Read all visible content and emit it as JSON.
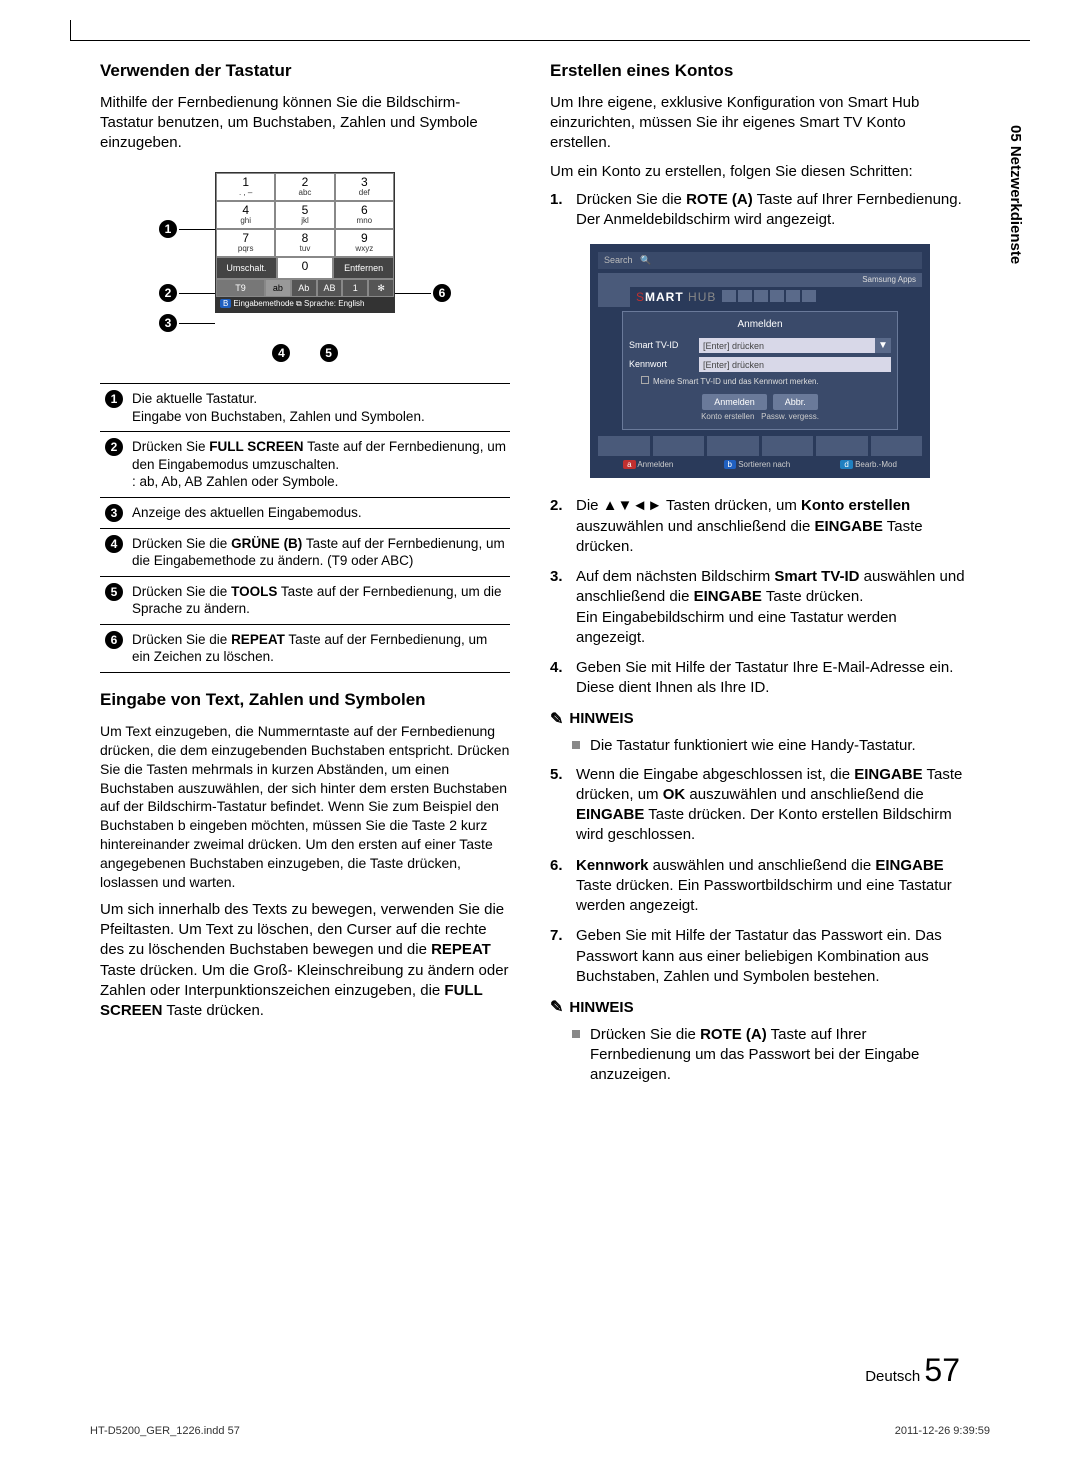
{
  "side_tab": "05  Netzwerkdienste",
  "left": {
    "h1": "Verwenden der Tastatur",
    "p1": "Mithilfe der Fernbedienung können Sie die Bildschirm-Tastatur benutzen, um Buchstaben, Zahlen und Symbole einzugeben.",
    "keyboard": {
      "rows": [
        [
          {
            "n": "1",
            "s": ". , –"
          },
          {
            "n": "2",
            "s": "abc"
          },
          {
            "n": "3",
            "s": "def"
          }
        ],
        [
          {
            "n": "4",
            "s": "ghi"
          },
          {
            "n": "5",
            "s": "jkl"
          },
          {
            "n": "6",
            "s": "mno"
          }
        ],
        [
          {
            "n": "7",
            "s": "pqrs"
          },
          {
            "n": "8",
            "s": "tuv"
          },
          {
            "n": "9",
            "s": "wxyz"
          }
        ]
      ],
      "bottom_left": "Umschalt.",
      "bottom_mid": "0",
      "bottom_right": "Entfernen",
      "mode_left": "T9",
      "modes": [
        "ab",
        "Ab",
        "AB",
        "1",
        "✻"
      ],
      "footer_badge": "B",
      "footer": "Eingabemethode ⧉ Sprache: English"
    },
    "legend": [
      {
        "n": "1",
        "t": "Die aktuelle Tastatur.\nEingabe von Buchstaben, Zahlen und Symbolen."
      },
      {
        "n": "2",
        "t": "Drücken Sie FULL SCREEN Taste auf der Fernbedienung, um den Eingabemodus umzuschalten.\n: ab, Ab, AB Zahlen oder Symbole."
      },
      {
        "n": "3",
        "t": "Anzeige des aktuellen Eingabemodus."
      },
      {
        "n": "4",
        "t": "Drücken Sie die GRÜNE (B) Taste auf der Fernbedienung, um die Eingabemethode zu ändern. (T9 oder ABC)"
      },
      {
        "n": "5",
        "t": "Drücken Sie die TOOLS Taste auf der Fernbedienung, um die Sprache zu ändern."
      },
      {
        "n": "6",
        "t": "Drücken Sie die REPEAT Taste auf der Fernbedienung, um ein Zeichen zu löschen."
      }
    ],
    "h2": "Eingabe von Text, Zahlen und Symbolen",
    "p2": "Um Text einzugeben, die Nummerntaste auf der Fernbedienung drücken, die dem einzugebenden Buchstaben entspricht. Drücken Sie die Tasten mehrmals in kurzen Abständen, um einen Buchstaben auszuwählen, der sich hinter dem ersten Buchstaben auf der Bildschirm-Tastatur befindet. Wenn Sie zum Beispiel den Buchstaben b eingeben möchten, müssen Sie die Taste 2 kurz hintereinander zweimal drücken. Um den ersten auf einer Taste angegebenen Buchstaben einzugeben, die Taste drücken, loslassen und warten.",
    "p3": "Um sich innerhalb des Texts zu bewegen, verwenden Sie die Pfeiltasten. Um Text zu löschen, den Curser auf die rechte des zu löschenden Buchstaben bewegen und die REPEAT Taste drücken. Um die Groß- Kleinschreibung zu ändern oder Zahlen oder Interpunktionszeichen einzugeben, die FULL SCREEN Taste drücken."
  },
  "right": {
    "h1": "Erstellen eines Kontos",
    "p1": "Um Ihre eigene, exklusive Konfiguration von Smart Hub einzurichten, müssen Sie ihr eigenes Smart TV Konto erstellen.",
    "p2": "Um ein Konto zu erstellen, folgen Sie diesen Schritten:",
    "step1": "Drücken Sie die ROTE (A) Taste auf Ihrer Fernbedienung. Der Anmeldebildschirm wird angezeigt.",
    "login": {
      "search": "Search",
      "samsung": "Samsung Apps",
      "hub": "SMART HUB",
      "title": "Anmelden",
      "field1_lbl": "Smart TV-ID",
      "field1_ph": "[Enter] drücken",
      "field2_lbl": "Kennwort",
      "field2_ph": "[Enter] drücken",
      "check": "Meine Smart TV-ID und das Kennwort merken.",
      "btn1": "Anmelden",
      "btn2": "Abbr.",
      "link1": "Konto erstellen",
      "link2": "Passw. vergess.",
      "f_a": "a Anmelden",
      "f_b": "b Sortieren nach",
      "f_d": "d Bearb.-Mod"
    },
    "step2": "Die ▲▼◄► Tasten drücken, um Konto erstellen auszuwählen und anschließend die EINGABE Taste drücken.",
    "step3": "Auf dem nächsten Bildschirm Smart TV-ID auswählen und anschließend die EINGABE Taste drücken.\nEin Eingabebildschirm und eine Tastatur werden angezeigt.",
    "step4": "Geben Sie mit Hilfe der Tastatur Ihre E-Mail-Adresse ein. Diese dient Ihnen als Ihre ID.",
    "hinweis_lbl": "HINWEIS",
    "hinweis1": "Die Tastatur funktioniert wie eine Handy-Tastatur.",
    "step5": "Wenn die Eingabe abgeschlossen ist, die EINGABE Taste drücken, um OK auszuwählen und anschließend die EINGABE Taste drücken. Der Konto erstellen Bildschirm wird geschlossen.",
    "step6": "Kennwork auswählen und anschließend die EINGABE Taste drücken. Ein Passwortbildschirm und eine Tastatur werden angezeigt.",
    "step7": "Geben Sie mit Hilfe der Tastatur das Passwort ein. Das Passwort kann aus einer beliebigen Kombination aus Buchstaben, Zahlen und Symbolen bestehen.",
    "hinweis2": "Drücken Sie die ROTE (A) Taste auf Ihrer Fernbedienung um das Passwort bei der Eingabe anzuzeigen."
  },
  "footer": {
    "lang": "Deutsch",
    "page": "57",
    "indd": "HT-D5200_GER_1226.indd   57",
    "ts": "2011-12-26   9:39:59"
  }
}
